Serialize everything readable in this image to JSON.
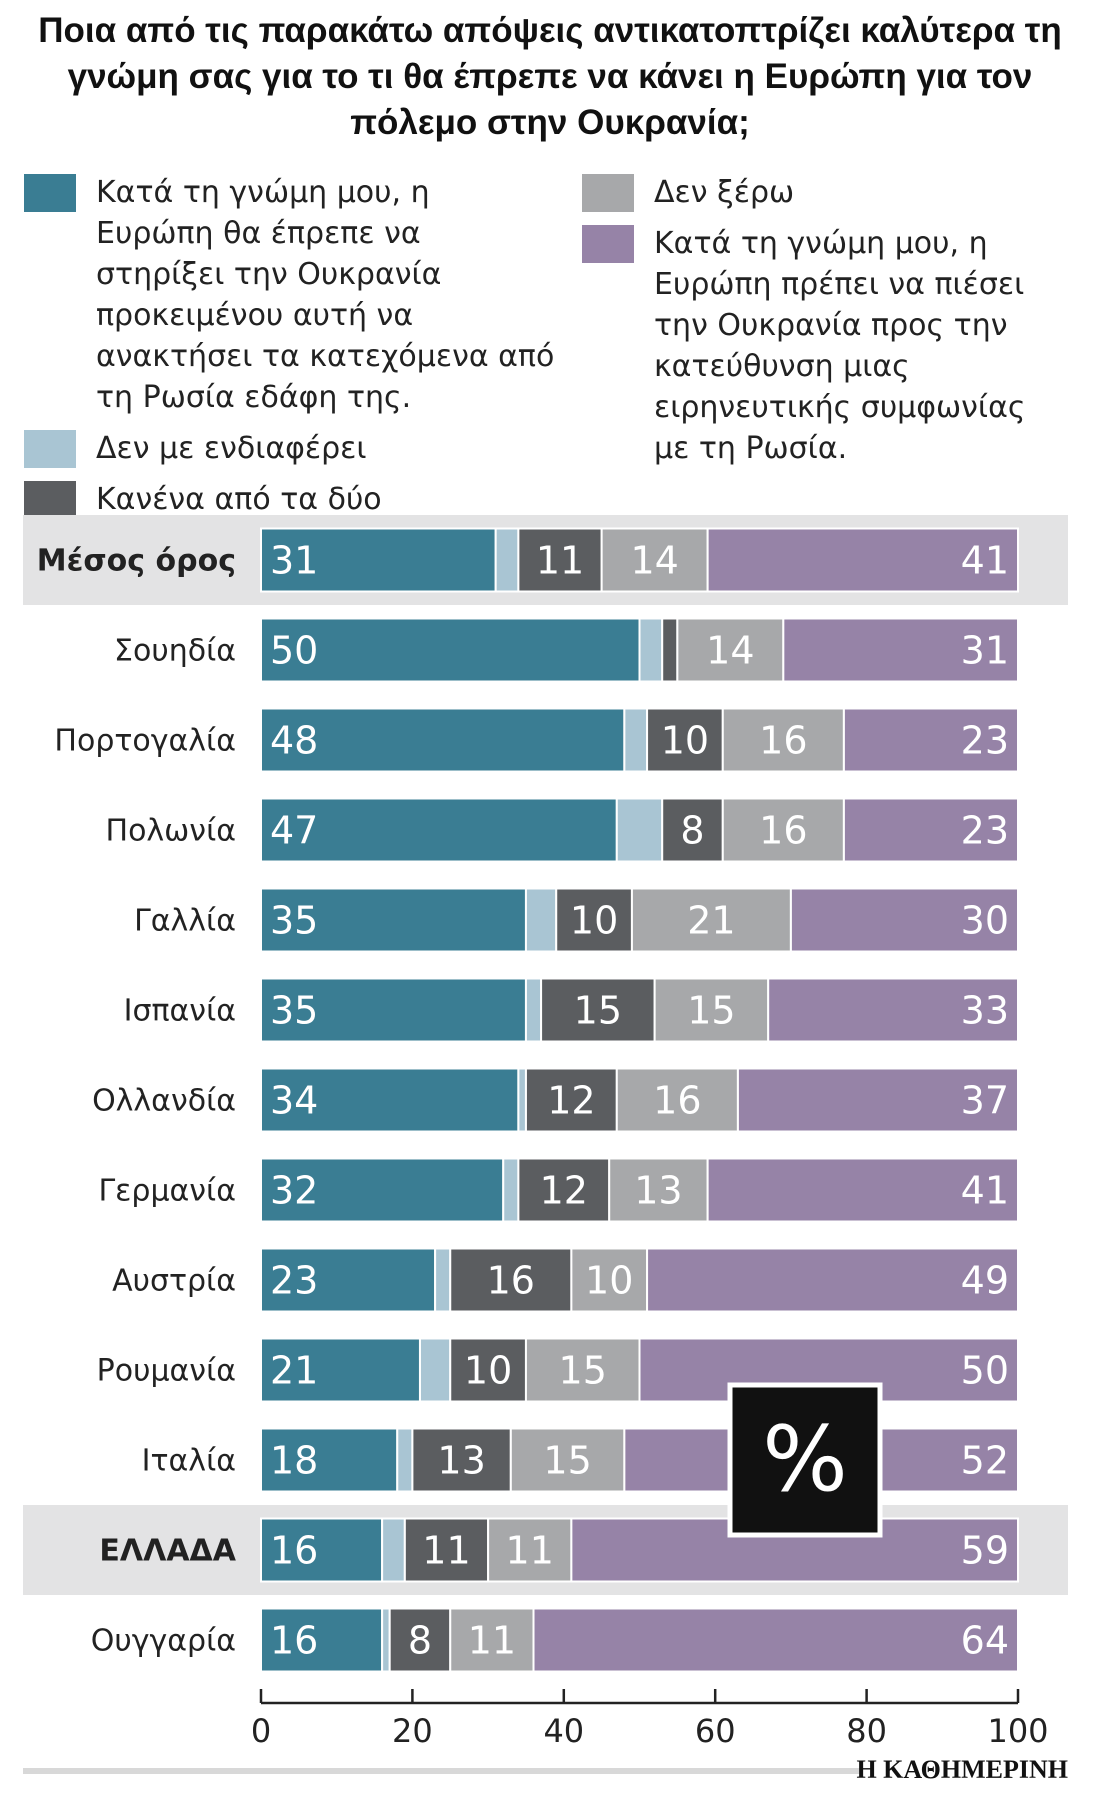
{
  "chart_data": {
    "type": "stacked_barh",
    "title": "Ποια από τις παρακάτω απόψεις αντικατοπτρίζει καλύτερα τη γνώμη σας για το τι θα έπρεπε να κάνει η Ευρώπη για τον πόλεμο στην Ουκρανία;",
    "categories": [
      "Μέσος όρος",
      "Σουηδία",
      "Πορτογαλία",
      "Πολωνία",
      "Γαλλία",
      "Ισπανία",
      "Ολλανδία",
      "Γερμανία",
      "Αυστρία",
      "Ρουμανία",
      "Ιταλία",
      "ΕΛΛΑΔΑ",
      "Ουγγαρία"
    ],
    "highlight": [
      0,
      11
    ],
    "series": [
      {
        "name": "Κατά τη γνώμη μου, η Ευρώπη θα έπρεπε να στηρίξει την Ουκρανία προκειμένου αυτή να ανακτήσει τα κατεχόμενα από τη Ρωσία εδάφη της.",
        "color": "#3a7d93",
        "values": [
          31,
          50,
          48,
          47,
          35,
          35,
          34,
          32,
          23,
          21,
          18,
          16,
          16
        ]
      },
      {
        "name": "Δεν με ενδιαφέρει",
        "color": "#a9c5d3",
        "values": [
          3,
          3,
          3,
          6,
          4,
          2,
          1,
          2,
          2,
          4,
          2,
          3,
          1
        ]
      },
      {
        "name": "Κανένα από τα δύο",
        "color": "#5b5d60",
        "values": [
          11,
          2,
          10,
          8,
          10,
          15,
          12,
          12,
          16,
          10,
          13,
          11,
          8
        ]
      },
      {
        "name": "Δεν ξέρω",
        "color": "#a7a8aa",
        "values": [
          14,
          14,
          16,
          16,
          21,
          15,
          16,
          13,
          10,
          15,
          15,
          11,
          11
        ]
      },
      {
        "name": "Κατά τη γνώμη μου, η Ευρώπη πρέπει να πιέσει την Ουκρανία προς την κατεύθυνση μιας ειρηνευτικής συμφωνίας με τη Ρωσία.",
        "color": "#9683a7",
        "values": [
          41,
          31,
          23,
          23,
          30,
          33,
          37,
          41,
          49,
          50,
          52,
          59,
          64
        ]
      }
    ],
    "xlim": [
      0,
      100
    ],
    "xticks": [
      0,
      20,
      40,
      60,
      80,
      100
    ],
    "unit_badge": "%",
    "source": "Η ΚΑΘΗΜΕΡΙΝΗ"
  }
}
